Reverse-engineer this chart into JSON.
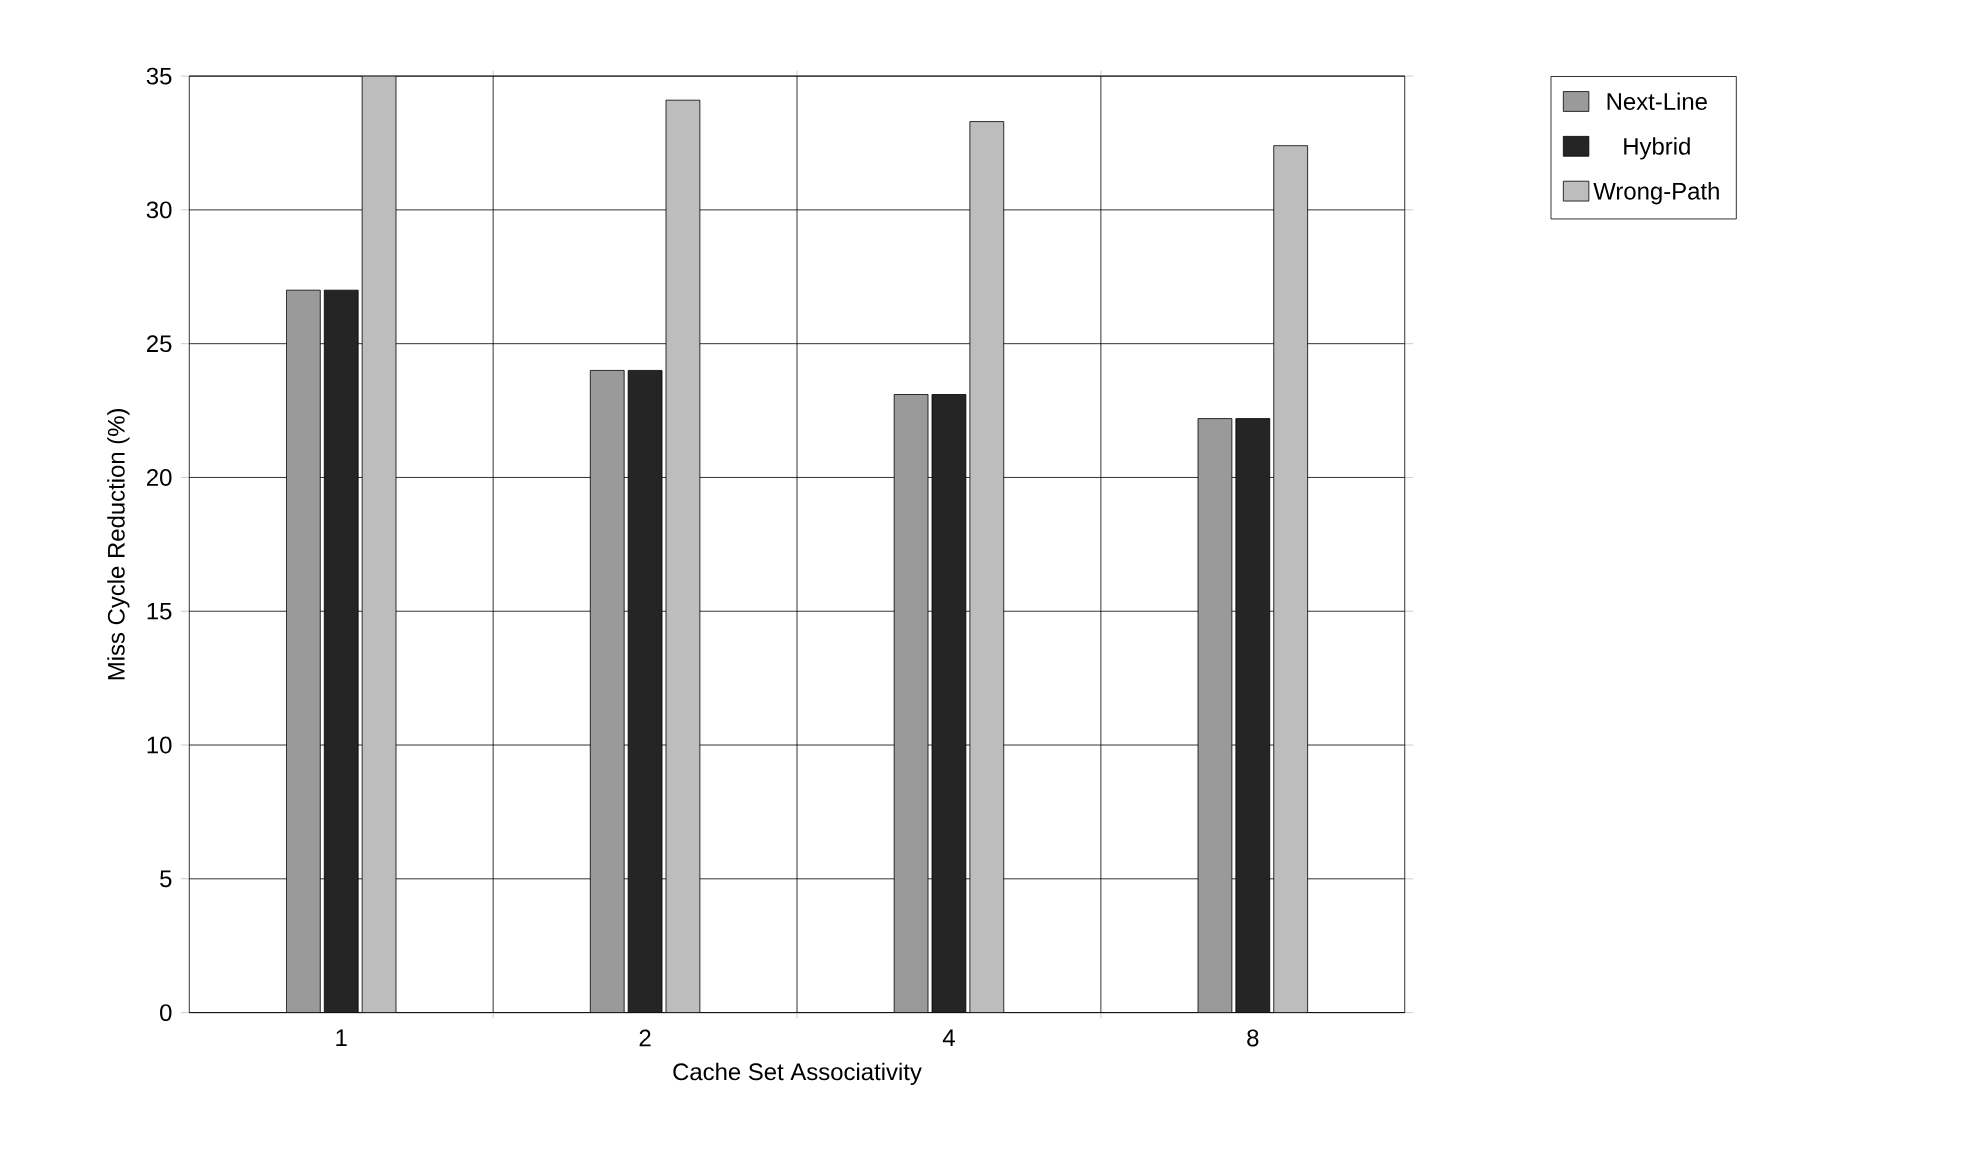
{
  "chart_data": {
    "type": "bar",
    "xlabel": "Cache Set Associativity",
    "ylabel": "Miss Cycle Reduction (%)",
    "categories": [
      "1",
      "2",
      "4",
      "8"
    ],
    "series": [
      {
        "name": "Next-Line",
        "color": "#9a9a9a",
        "values": [
          27,
          24,
          23.1,
          22.2
        ]
      },
      {
        "name": "Hybrid",
        "color": "#252525",
        "values": [
          27,
          24,
          23.1,
          22.2
        ]
      },
      {
        "name": "Wrong-Path",
        "color": "#bdbdbd",
        "values": [
          35,
          34.1,
          33.3,
          32.4
        ]
      }
    ],
    "ylim": [
      0,
      35
    ],
    "yticks": [
      0,
      5,
      10,
      15,
      20,
      25,
      30,
      35
    ],
    "grid": true,
    "legend": "top right"
  }
}
